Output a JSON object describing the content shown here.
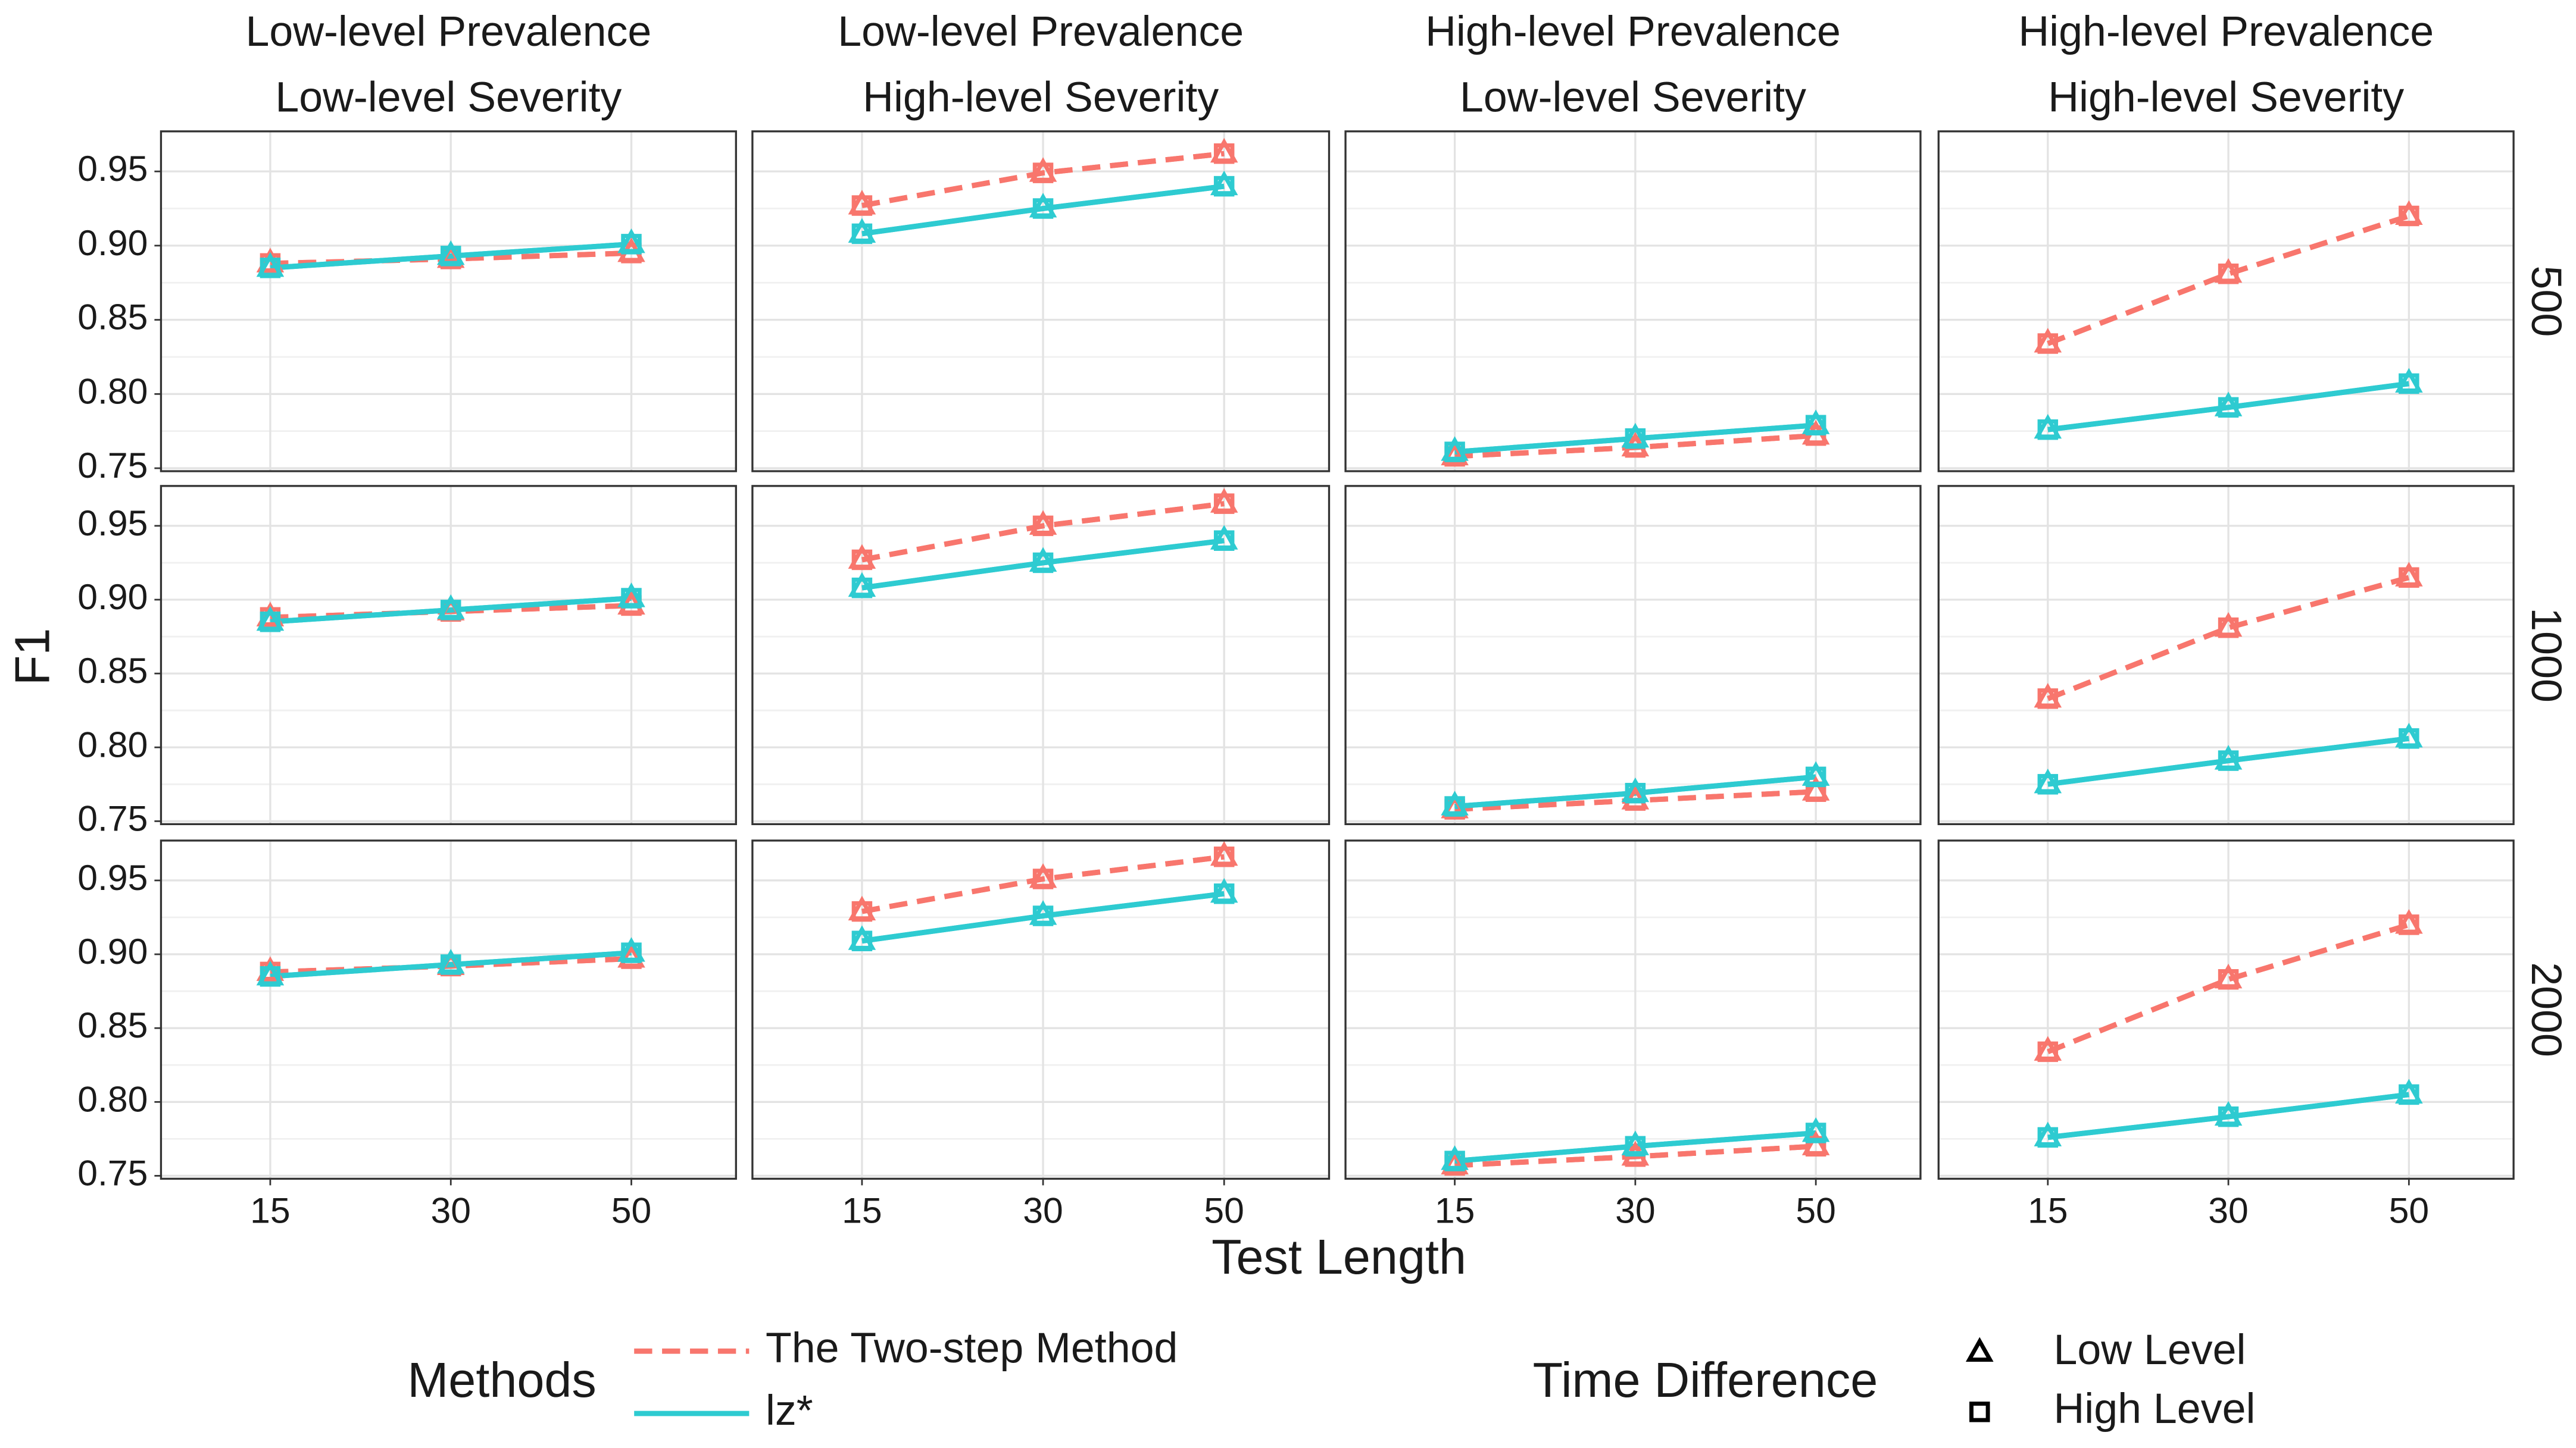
{
  "chart_data": {
    "type": "line",
    "x_label": "Test Length",
    "y_label": "F1",
    "categories": [
      "15",
      "30",
      "50"
    ],
    "ylim": [
      0.748,
      0.977
    ],
    "yticks": [
      {
        "value": 0.75,
        "label": "0.75"
      },
      {
        "value": 0.8,
        "label": "0.80"
      },
      {
        "value": 0.85,
        "label": "0.85"
      },
      {
        "value": 0.9,
        "label": "0.90"
      },
      {
        "value": 0.95,
        "label": "0.95"
      }
    ],
    "grid": true,
    "col_titles": [
      [
        "Low-level Prevalence",
        "Low-level Severity"
      ],
      [
        "Low-level Prevalence",
        "High-level Severity"
      ],
      [
        "High-level Prevalence",
        "Low-level Severity"
      ],
      [
        "High-level Prevalence",
        "High-level Severity"
      ]
    ],
    "row_labels": [
      "500",
      "1000",
      "2000"
    ],
    "legend": {
      "methods": {
        "title": "Methods",
        "items": [
          {
            "name": "The Two-step Method",
            "color": "#F8766D",
            "dash": true
          },
          {
            "name": "lz*",
            "color": "#2ECBD1",
            "dash": false
          }
        ]
      },
      "time_difference": {
        "title": "Time Difference",
        "items": [
          {
            "name": "Low Level",
            "shape": "triangle"
          },
          {
            "name": "High Level",
            "shape": "square"
          }
        ]
      }
    },
    "panels": [
      [
        {
          "series": [
            {
              "values": [
                0.888,
                0.891,
                0.895
              ]
            },
            {
              "values": [
                0.888,
                0.891,
                0.895
              ]
            },
            {
              "values": [
                0.885,
                0.893,
                0.901
              ]
            },
            {
              "values": [
                0.885,
                0.893,
                0.901
              ]
            }
          ]
        },
        {
          "series": [
            {
              "values": [
                0.927,
                0.949,
                0.962
              ]
            },
            {
              "values": [
                0.927,
                0.949,
                0.962
              ]
            },
            {
              "values": [
                0.908,
                0.925,
                0.94
              ]
            },
            {
              "values": [
                0.908,
                0.925,
                0.94
              ]
            }
          ]
        },
        {
          "series": [
            {
              "values": [
                0.758,
                0.764,
                0.772
              ]
            },
            {
              "values": [
                0.758,
                0.764,
                0.772
              ]
            },
            {
              "values": [
                0.761,
                0.77,
                0.779
              ]
            },
            {
              "values": [
                0.761,
                0.77,
                0.779
              ]
            }
          ]
        },
        {
          "series": [
            {
              "values": [
                0.834,
                0.881,
                0.92
              ]
            },
            {
              "values": [
                0.834,
                0.881,
                0.92
              ]
            },
            {
              "values": [
                0.776,
                0.791,
                0.807
              ]
            },
            {
              "values": [
                0.776,
                0.791,
                0.807
              ]
            }
          ]
        }
      ],
      [
        {
          "series": [
            {
              "values": [
                0.888,
                0.892,
                0.896
              ]
            },
            {
              "values": [
                0.888,
                0.892,
                0.896
              ]
            },
            {
              "values": [
                0.885,
                0.893,
                0.901
              ]
            },
            {
              "values": [
                0.885,
                0.893,
                0.901
              ]
            }
          ]
        },
        {
          "series": [
            {
              "values": [
                0.927,
                0.95,
                0.965
              ]
            },
            {
              "values": [
                0.927,
                0.95,
                0.965
              ]
            },
            {
              "values": [
                0.908,
                0.925,
                0.94
              ]
            },
            {
              "values": [
                0.908,
                0.925,
                0.94
              ]
            }
          ]
        },
        {
          "series": [
            {
              "values": [
                0.758,
                0.764,
                0.77
              ]
            },
            {
              "values": [
                0.758,
                0.764,
                0.77
              ]
            },
            {
              "values": [
                0.76,
                0.769,
                0.78
              ]
            },
            {
              "values": [
                0.76,
                0.769,
                0.78
              ]
            }
          ]
        },
        {
          "series": [
            {
              "values": [
                0.833,
                0.881,
                0.915
              ]
            },
            {
              "values": [
                0.833,
                0.881,
                0.915
              ]
            },
            {
              "values": [
                0.775,
                0.791,
                0.806
              ]
            },
            {
              "values": [
                0.775,
                0.791,
                0.806
              ]
            }
          ]
        }
      ],
      [
        {
          "series": [
            {
              "values": [
                0.888,
                0.892,
                0.897
              ]
            },
            {
              "values": [
                0.888,
                0.892,
                0.897
              ]
            },
            {
              "values": [
                0.885,
                0.893,
                0.901
              ]
            },
            {
              "values": [
                0.885,
                0.893,
                0.901
              ]
            }
          ]
        },
        {
          "series": [
            {
              "values": [
                0.929,
                0.951,
                0.966
              ]
            },
            {
              "values": [
                0.929,
                0.951,
                0.966
              ]
            },
            {
              "values": [
                0.909,
                0.926,
                0.941
              ]
            },
            {
              "values": [
                0.909,
                0.926,
                0.941
              ]
            }
          ]
        },
        {
          "series": [
            {
              "values": [
                0.757,
                0.763,
                0.77
              ]
            },
            {
              "values": [
                0.757,
                0.763,
                0.77
              ]
            },
            {
              "values": [
                0.76,
                0.77,
                0.779
              ]
            },
            {
              "values": [
                0.76,
                0.77,
                0.779
              ]
            }
          ]
        },
        {
          "series": [
            {
              "values": [
                0.834,
                0.883,
                0.92
              ]
            },
            {
              "values": [
                0.834,
                0.883,
                0.92
              ]
            },
            {
              "values": [
                0.776,
                0.79,
                0.805
              ]
            },
            {
              "values": [
                0.776,
                0.79,
                0.805
              ]
            }
          ]
        }
      ]
    ]
  }
}
